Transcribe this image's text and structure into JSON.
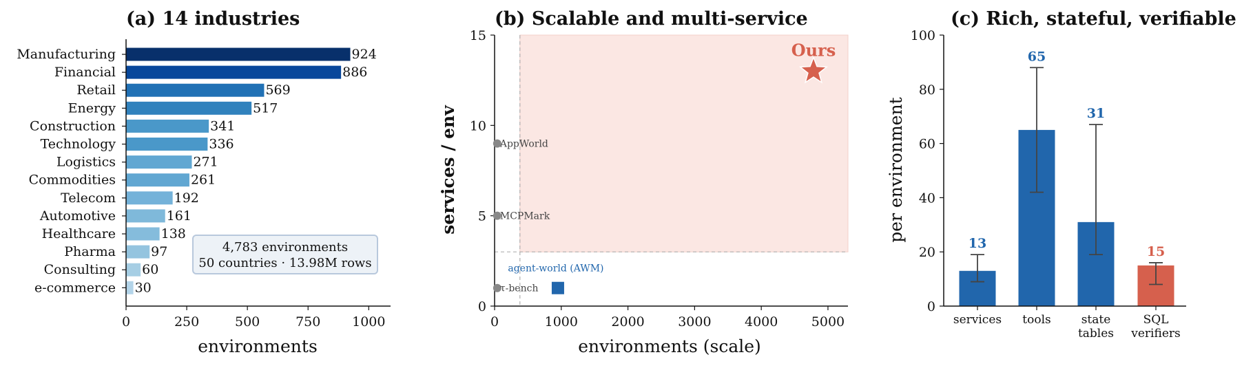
{
  "chart_data": [
    {
      "type": "bar",
      "orientation": "horizontal",
      "title": "(a) 14 industries",
      "xlabel": "environments",
      "ylabel": "",
      "xlim": [
        0,
        1090
      ],
      "xticks": [
        0,
        250,
        500,
        750,
        1000
      ],
      "categories": [
        "Manufacturing",
        "Financial",
        "Retail",
        "Energy",
        "Construction",
        "Technology",
        "Logistics",
        "Commodities",
        "Telecom",
        "Automotive",
        "Healthcare",
        "Pharma",
        "Consulting",
        "e-commerce"
      ],
      "values": [
        924,
        886,
        569,
        517,
        341,
        336,
        271,
        261,
        192,
        161,
        138,
        97,
        60,
        30
      ],
      "annotation": [
        "4,783 environments",
        "50 countries · 13.98M rows"
      ],
      "colors": [
        "#08306b",
        "#08479b",
        "#2171b5",
        "#3182bd",
        "#4a98c9",
        "#4a98c9",
        "#61a7d2",
        "#61a7d2",
        "#74b2d9",
        "#7fb9da",
        "#85bcdc",
        "#94c4df",
        "#a6cee4",
        "#b3d4e9"
      ]
    },
    {
      "type": "scatter",
      "title": "(b) Scalable and multi-service",
      "xlabel": "environments (scale)",
      "ylabel": "services / env",
      "xlim": [
        0,
        5300
      ],
      "ylim": [
        0,
        15
      ],
      "xticks": [
        0,
        1000,
        2000,
        3000,
        4000,
        5000
      ],
      "yticks": [
        0,
        5,
        10,
        15
      ],
      "region": {
        "x": [
          380,
          5300
        ],
        "y": [
          3,
          15
        ],
        "color": "#fbe7e3"
      },
      "threshold_lines": {
        "x": 380,
        "y": 3
      },
      "points": [
        {
          "label": "AppWorld",
          "x": 40,
          "y": 9,
          "marker": "circle",
          "color": "#888888"
        },
        {
          "label": "MCPMark",
          "x": 40,
          "y": 5,
          "marker": "circle",
          "color": "#888888"
        },
        {
          "label": "τ-bench",
          "x": 40,
          "y": 1,
          "marker": "circle",
          "color": "#888888"
        },
        {
          "label": "agent-world (AWM)",
          "x": 950,
          "y": 1,
          "marker": "square",
          "color": "#2166ac"
        },
        {
          "label": "Ours",
          "x": 4783,
          "y": 13,
          "marker": "star",
          "color": "#d6604d"
        }
      ]
    },
    {
      "type": "bar",
      "title": "(c) Rich, stateful, verifiable",
      "xlabel": "",
      "ylabel": "per environment",
      "ylim": [
        0,
        100
      ],
      "yticks": [
        0,
        20,
        40,
        60,
        80,
        100
      ],
      "categories": [
        [
          "services"
        ],
        [
          "tools"
        ],
        [
          "state",
          "tables"
        ],
        [
          "SQL",
          "verifiers"
        ]
      ],
      "values": [
        13,
        65,
        31,
        15
      ],
      "value_labels": [
        "13",
        "65",
        "31",
        "15"
      ],
      "error_low": [
        9,
        42,
        19,
        8
      ],
      "error_high": [
        19,
        88,
        67,
        16
      ],
      "colors": [
        "#2166ac",
        "#2166ac",
        "#2166ac",
        "#d6604d"
      ]
    }
  ]
}
